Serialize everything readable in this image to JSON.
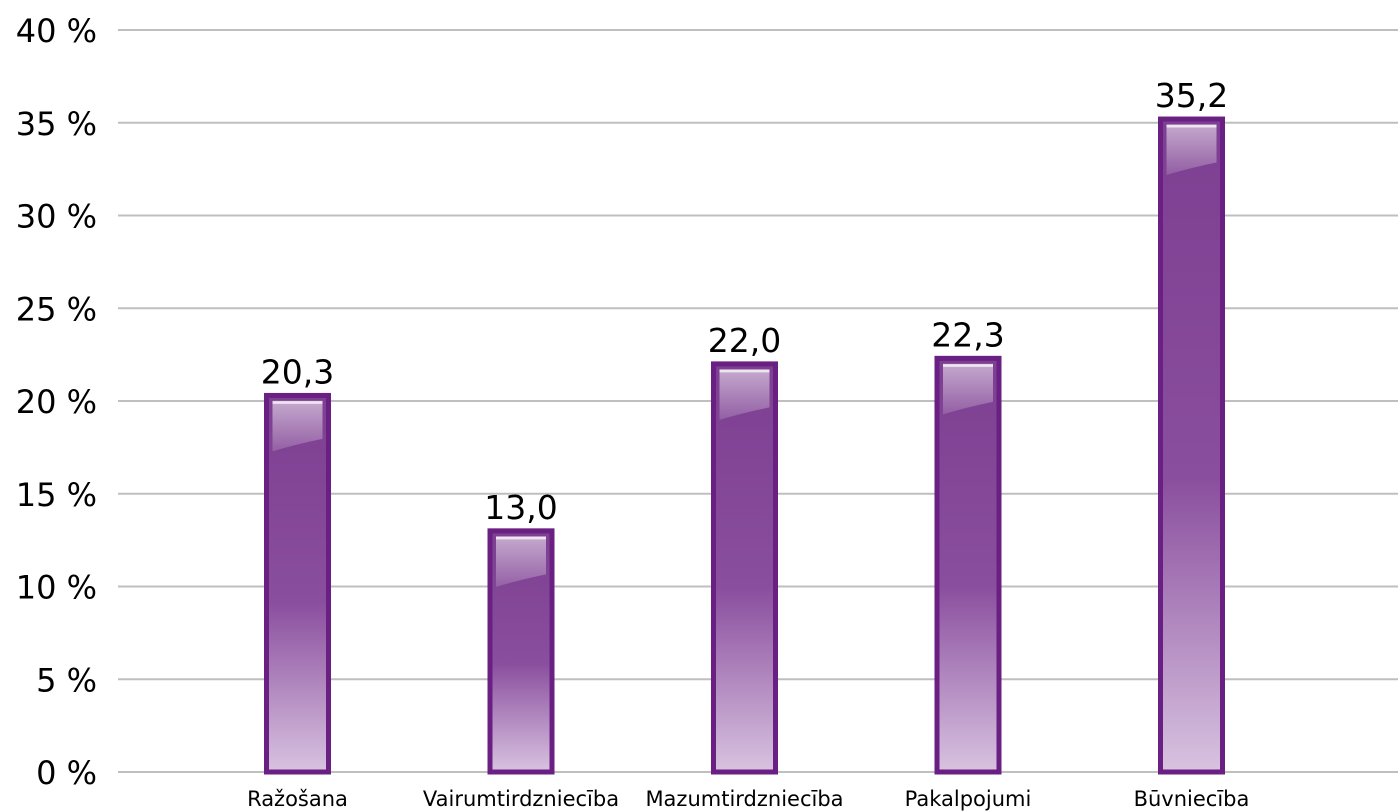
{
  "chart_data": {
    "type": "bar",
    "categories": [
      "Ražošana",
      "Vairumtirdzniecība",
      "Mazumtirdzniecība",
      "Pakalpojumi",
      "Būvniecība"
    ],
    "values": [
      20.3,
      13.0,
      22.0,
      22.3,
      35.2
    ],
    "data_labels": [
      "20,3",
      "13,0",
      "22,0",
      "22,3",
      "35,2"
    ],
    "ylim": [
      0,
      40
    ],
    "yticks": [
      0,
      5,
      10,
      15,
      20,
      25,
      30,
      35,
      40
    ],
    "ytick_labels": [
      "0 %",
      "5 %",
      "10 %",
      "15 %",
      "20 %",
      "25 %",
      "30 %",
      "35 %",
      "40 %"
    ],
    "grid": true,
    "bar_color": "#7e3f92",
    "bar_border_color": "#6a1f82"
  }
}
